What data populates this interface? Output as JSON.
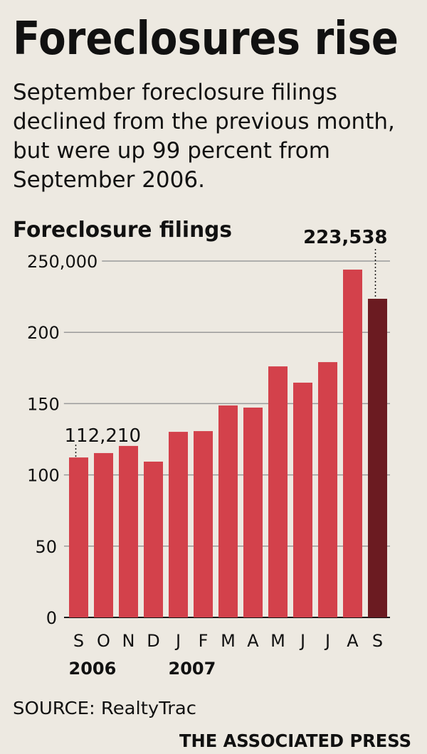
{
  "chart_data": {
    "type": "bar",
    "title": "Foreclosures rise",
    "subtitle": [
      "September foreclosure filings",
      "declined from the previous month,",
      "but were up 99 percent from",
      "September 2006."
    ],
    "y_label": "Foreclosure filings",
    "categories": [
      "S",
      "O",
      "N",
      "D",
      "J",
      "F",
      "M",
      "A",
      "M",
      "J",
      "J",
      "A",
      "S"
    ],
    "year_labels": [
      "2006",
      null,
      null,
      null,
      "2007",
      null,
      null,
      null,
      null,
      null,
      null,
      null,
      null
    ],
    "values": [
      112210,
      115300,
      120300,
      109300,
      130200,
      130700,
      148700,
      147200,
      176100,
      164700,
      179100,
      244000,
      223538
    ],
    "value_labels": [
      "112,210",
      null,
      null,
      null,
      null,
      null,
      null,
      null,
      null,
      null,
      null,
      null,
      "223,538"
    ],
    "colors": [
      "#d3414b",
      "#d3414b",
      "#d3414b",
      "#d3414b",
      "#d3414b",
      "#d3414b",
      "#d3414b",
      "#d3414b",
      "#d3414b",
      "#d3414b",
      "#d3414b",
      "#d3414b",
      "#6b1b21"
    ],
    "ylim": [
      0,
      250000
    ],
    "yticks": [
      0,
      {
        "value": 50000,
        "label": "50"
      },
      {
        "value": 100000,
        "label": "100"
      },
      {
        "value": 150000,
        "label": "150"
      },
      {
        "value": 200000,
        "label": "200"
      },
      {
        "value": 250000,
        "label": "250,000"
      }
    ],
    "grid": true,
    "source": "SOURCE: RealtyTrac",
    "credit": "THE ASSOCIATED PRESS"
  }
}
